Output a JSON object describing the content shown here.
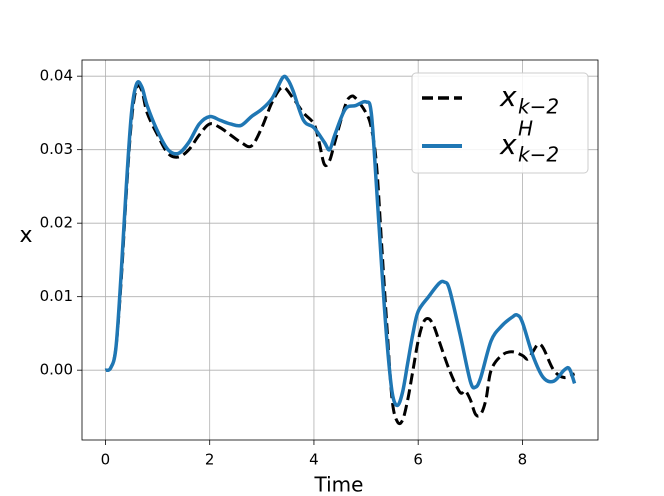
{
  "chart_data": {
    "type": "line",
    "xlabel": "Time",
    "ylabel": "x",
    "xlim": [
      -0.45,
      9.45
    ],
    "xticks": [
      0,
      2,
      4,
      6,
      8
    ],
    "ylim": [
      -0.0095,
      0.0422
    ],
    "yticks": [
      {
        "value": 0,
        "label": "0.00"
      },
      0.01,
      0.02,
      0.03,
      0.04
    ],
    "grid": true,
    "legend": "upper right",
    "series": [
      {
        "name": "x",
        "name_sub": "k−2",
        "color": "#000000",
        "dash": "dashed",
        "x": [
          0,
          0.1,
          0.2,
          0.3,
          0.4,
          0.5,
          0.6,
          0.7,
          0.8,
          1.0,
          1.2,
          1.4,
          1.6,
          1.8,
          2.0,
          2.2,
          2.4,
          2.6,
          2.8,
          3.0,
          3.2,
          3.4,
          3.6,
          3.8,
          4.0,
          4.1,
          4.2,
          4.3,
          4.4,
          4.6,
          4.7,
          4.8,
          5.0,
          5.1,
          5.2,
          5.3,
          5.4,
          5.5,
          5.6,
          5.7,
          5.8,
          5.9,
          6.0,
          6.1,
          6.2,
          6.3,
          6.4,
          6.6,
          6.8,
          6.9,
          7.0,
          7.1,
          7.2,
          7.3,
          7.4,
          7.6,
          7.8,
          8.0,
          8.1,
          8.2,
          8.3,
          8.4,
          8.6,
          8.8,
          9.0
        ],
        "values": [
          0,
          0.0003,
          0.003,
          0.012,
          0.024,
          0.034,
          0.0385,
          0.038,
          0.035,
          0.032,
          0.0295,
          0.029,
          0.03,
          0.032,
          0.0335,
          0.033,
          0.032,
          0.031,
          0.0305,
          0.033,
          0.0365,
          0.0385,
          0.037,
          0.035,
          0.0335,
          0.031,
          0.028,
          0.0285,
          0.031,
          0.036,
          0.0372,
          0.037,
          0.035,
          0.033,
          0.028,
          0.017,
          0.006,
          -0.004,
          -0.007,
          -0.0068,
          -0.004,
          0.0,
          0.004,
          0.0065,
          0.007,
          0.006,
          0.004,
          0.0,
          -0.003,
          -0.0028,
          -0.004,
          -0.006,
          -0.006,
          -0.004,
          0.0,
          0.002,
          0.0025,
          0.002,
          0.0015,
          0.0025,
          0.0035,
          0.003,
          0.0,
          -0.001,
          -0.0005
        ]
      },
      {
        "name": "x",
        "name_sub": "k−2",
        "name_sup": "H",
        "color": "#1f77b4",
        "dash": "solid",
        "x": [
          0,
          0.1,
          0.2,
          0.3,
          0.4,
          0.5,
          0.6,
          0.7,
          0.8,
          1.0,
          1.2,
          1.4,
          1.6,
          1.8,
          2.0,
          2.2,
          2.4,
          2.6,
          2.8,
          3.0,
          3.2,
          3.4,
          3.5,
          3.6,
          3.8,
          4.0,
          4.2,
          4.3,
          4.4,
          4.6,
          4.8,
          5.0,
          5.1,
          5.2,
          5.3,
          5.4,
          5.5,
          5.6,
          5.7,
          5.8,
          5.9,
          6.0,
          6.2,
          6.4,
          6.5,
          6.6,
          6.8,
          7.0,
          7.1,
          7.2,
          7.4,
          7.6,
          7.8,
          7.9,
          8.0,
          8.2,
          8.4,
          8.6,
          8.8,
          8.9,
          9.0
        ],
        "values": [
          0,
          0.0003,
          0.003,
          0.013,
          0.025,
          0.035,
          0.039,
          0.0385,
          0.036,
          0.0325,
          0.03,
          0.0295,
          0.031,
          0.0335,
          0.0345,
          0.034,
          0.0335,
          0.0333,
          0.0345,
          0.0355,
          0.037,
          0.0398,
          0.0395,
          0.038,
          0.034,
          0.033,
          0.031,
          0.03,
          0.032,
          0.0355,
          0.036,
          0.0365,
          0.035,
          0.025,
          0.014,
          0.004,
          -0.003,
          -0.0048,
          -0.003,
          0.001,
          0.005,
          0.008,
          0.01,
          0.0118,
          0.012,
          0.011,
          0.005,
          -0.0015,
          -0.0023,
          -0.001,
          0.004,
          0.006,
          0.0072,
          0.0075,
          0.0065,
          0.002,
          -0.001,
          -0.0015,
          0.0,
          0.0002,
          -0.0018
        ]
      }
    ]
  }
}
